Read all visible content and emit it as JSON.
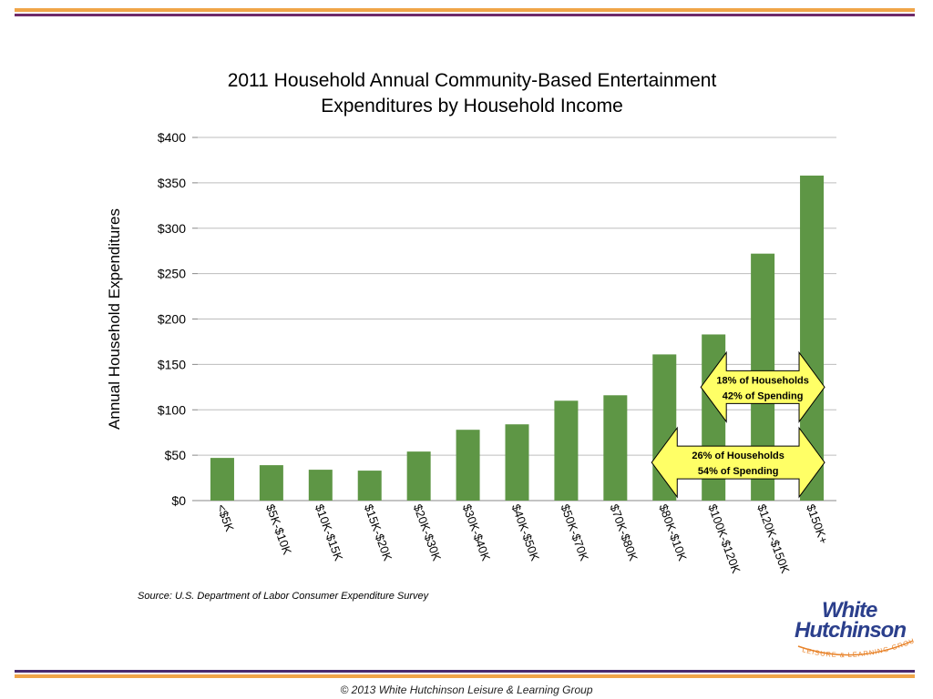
{
  "chart_data": {
    "type": "bar",
    "title_lines": [
      "2011 Household Annual Community-Based Entertainment",
      "Expenditures by Household Income"
    ],
    "ylabel": "Annual Household Expenditures",
    "xlabel": "",
    "ylim": [
      0,
      400
    ],
    "yticks": [
      "$0",
      "$50",
      "$100",
      "$150",
      "$200",
      "$250",
      "$300",
      "$350",
      "$400"
    ],
    "ytick_values": [
      0,
      50,
      100,
      150,
      200,
      250,
      300,
      350,
      400
    ],
    "grid": true,
    "bar_color": "#5e9645",
    "categories": [
      "<$5K",
      "$5K-$10K",
      "$10K-$15K",
      "$15K-$20K",
      "$20K-$30K",
      "$30K-$40K",
      "$40K-$50K",
      "$50K-$70K",
      "$70K-$80K",
      "$80K-$10K",
      "$100K-$120K",
      "$120K-$150K",
      "$150K+"
    ],
    "values": [
      47,
      39,
      34,
      33,
      54,
      78,
      84,
      110,
      116,
      161,
      183,
      272,
      358
    ],
    "annotations": [
      {
        "lines": [
          "18% of Households",
          "42% of Spending"
        ],
        "from_category": "$100K-$120K",
        "to_category": "$150K+",
        "level": 125
      },
      {
        "lines": [
          "26% of Households",
          "54% of Spending"
        ],
        "from_category": "$80K-$10K",
        "to_category": "$150K+",
        "level": 42
      }
    ],
    "annotation_fill": "#ffff66"
  },
  "source_text": "Source:  U.S. Department of Labor Consumer Expenditure Survey",
  "footer_text": "© 2013 White Hutchinson Leisure & Learning Group",
  "logo": {
    "line1": "White",
    "line2": "Hutchinson",
    "tagline": "LEISURE & LEARNING GROUP"
  },
  "colors": {
    "orange": "#f0a548",
    "purple": "#6f2a69",
    "logo_blue": "#2b3f8c",
    "logo_orange": "#e8832a"
  }
}
